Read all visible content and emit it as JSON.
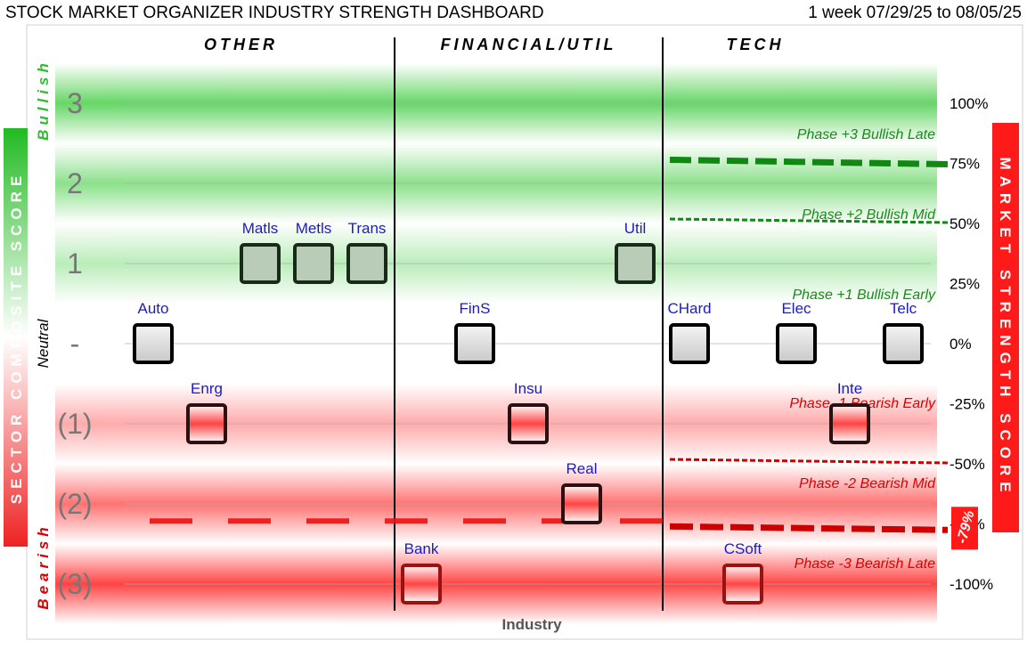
{
  "header": {
    "title": "STOCK MARKET ORGANIZER INDUSTRY STRENGTH DASHBOARD",
    "period": "1 week 07/29/25 to 08/05/25"
  },
  "chart_data": {
    "type": "scatter",
    "title": "STOCK MARKET ORGANIZER INDUSTRY STRENGTH DASHBOARD",
    "xlabel": "Industry",
    "left_axis_label": "SECTOR COMPOSITE SCORE",
    "right_axis_label": "MARKET STRENGTH SCORE",
    "left_ticks": [
      "3",
      "2",
      "1",
      "-",
      "(1)",
      "(2)",
      "(3)"
    ],
    "left_tick_values": [
      3,
      2,
      1,
      0,
      -1,
      -2,
      -3
    ],
    "right_ticks": [
      "100%",
      "75%",
      "50%",
      "25%",
      "0%",
      "-25%",
      "-50%",
      "-75%",
      "-100%"
    ],
    "right_tick_values": [
      100,
      75,
      50,
      25,
      0,
      -25,
      -50,
      -75,
      -100
    ],
    "ylim": [
      -3.4,
      3.6
    ],
    "side_labels": {
      "bullish": "Bullish",
      "neutral": "Neutral",
      "bearish": "Bearish"
    },
    "groups": [
      "OTHER",
      "FINANCIAL/UTIL",
      "TECH"
    ],
    "phases": [
      {
        "label": "Phase +3 Bullish Late",
        "score": 3
      },
      {
        "label": "Phase +2 Bullish Mid",
        "score": 2
      },
      {
        "label": "Phase +1 Bullish Early",
        "score": 1
      },
      {
        "label": "Phase -1 Bearish Early",
        "score": -1
      },
      {
        "label": "Phase -2 Bearish Mid",
        "score": -2
      },
      {
        "label": "Phase -3 Bearish Late",
        "score": -3
      }
    ],
    "industries": [
      {
        "label": "Auto",
        "group": "OTHER",
        "score": 0
      },
      {
        "label": "Enrg",
        "group": "OTHER",
        "score": -1
      },
      {
        "label": "Matls",
        "group": "OTHER",
        "score": 1
      },
      {
        "label": "Metls",
        "group": "OTHER",
        "score": 1
      },
      {
        "label": "Trans",
        "group": "OTHER",
        "score": 1
      },
      {
        "label": "Bank",
        "group": "FINANCIAL/UTIL",
        "score": -3
      },
      {
        "label": "FinS",
        "group": "FINANCIAL/UTIL",
        "score": 0
      },
      {
        "label": "Insu",
        "group": "FINANCIAL/UTIL",
        "score": -1
      },
      {
        "label": "Real",
        "group": "FINANCIAL/UTIL",
        "score": -2
      },
      {
        "label": "Util",
        "group": "FINANCIAL/UTIL",
        "score": 1
      },
      {
        "label": "CHard",
        "group": "TECH",
        "score": 0
      },
      {
        "label": "CSoft",
        "group": "TECH",
        "score": -3
      },
      {
        "label": "Elec",
        "group": "TECH",
        "score": 0
      },
      {
        "label": "Inte",
        "group": "TECH",
        "score": -1
      },
      {
        "label": "Telc",
        "group": "TECH",
        "score": 0
      }
    ],
    "market_strength": {
      "value": -79,
      "label": "-79%"
    },
    "colors": {
      "bullish": "#55d055",
      "bearish": "#ff3333",
      "right_axis_bg": "#ff1a1a",
      "industry_label": "#1a1acc",
      "bullish_line": "#118811",
      "bearish_line": "#cc0000",
      "phase_bull_text": "#1a8a1a",
      "phase_bear_text": "#dd0000"
    }
  }
}
